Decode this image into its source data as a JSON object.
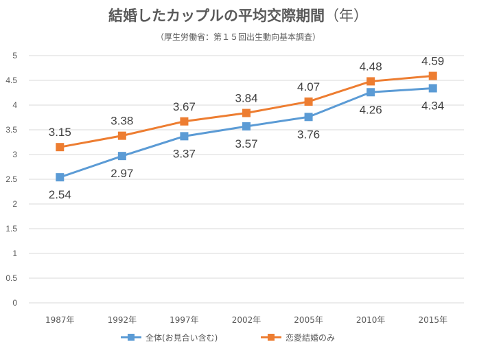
{
  "chart_data": {
    "type": "line",
    "title": "結婚したカップルの平均交際期間",
    "title_unit": "（年）",
    "subtitle": "（厚生労働省：第１５回出生動向基本調査）",
    "categories": [
      "1987年",
      "1992年",
      "1997年",
      "2002年",
      "2005年",
      "2010年",
      "2015年"
    ],
    "ylim": [
      0,
      5
    ],
    "yticks": [
      "0",
      "0.5",
      "1",
      "1.5",
      "2",
      "2.5",
      "3",
      "3.5",
      "4",
      "4.5",
      "5"
    ],
    "grid": true,
    "legend_position": "bottom",
    "series": [
      {
        "name": "全体(お見合い含む)",
        "color": "#5b9bd5",
        "values": [
          2.54,
          2.97,
          3.37,
          3.57,
          3.76,
          4.26,
          4.34
        ],
        "labels": [
          "2.54",
          "2.97",
          "3.37",
          "3.57",
          "3.76",
          "4.26",
          "4.34"
        ],
        "label_position": "below"
      },
      {
        "name": "恋愛結婚のみ",
        "color": "#ed7d31",
        "values": [
          3.15,
          3.38,
          3.67,
          3.84,
          4.07,
          4.48,
          4.59
        ],
        "labels": [
          "3.15",
          "3.38",
          "3.67",
          "3.84",
          "4.07",
          "4.48",
          "4.59"
        ],
        "label_position": "above"
      }
    ]
  }
}
